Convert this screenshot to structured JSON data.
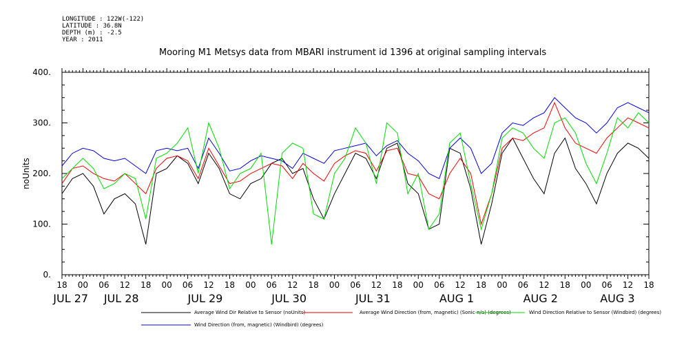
{
  "meta_lines": [
    "LONGITUDE : 122W(-122)",
    "LATITUDE : 36.8N",
    "DEPTH (m) : -2.5",
    "YEAR : 2011"
  ],
  "chart_data": {
    "type": "line",
    "title": "Mooring M1 Metsys data from MBARI instrument id 1396 at original sampling intervals",
    "ylabel": "noUnits",
    "xlabel": "",
    "ylim": [
      0,
      400
    ],
    "xlim": [
      -6,
      162
    ],
    "y_ticks": [
      0,
      100,
      200,
      300,
      400
    ],
    "y_tick_labels": [
      "0.",
      "100.",
      "200.",
      "300.",
      "400."
    ],
    "x_tick_hours": [
      -6,
      0,
      6,
      12,
      18,
      24,
      30,
      36,
      42,
      48,
      54,
      60,
      66,
      72,
      78,
      84,
      90,
      96,
      102,
      108,
      114,
      120,
      126,
      132,
      138,
      144,
      150,
      156,
      162
    ],
    "x_tick_labels": [
      "18",
      "00",
      "06",
      "12",
      "18",
      "00",
      "06",
      "12",
      "18",
      "00",
      "06",
      "12",
      "18",
      "00",
      "06",
      "12",
      "18",
      "00",
      "06",
      "12",
      "18",
      "00",
      "06",
      "12",
      "18",
      "00",
      "06",
      "12",
      "18"
    ],
    "day_labels": [
      {
        "text": "JUL 27",
        "hour": -3.5
      },
      {
        "text": "JUL 28",
        "hour": 11
      },
      {
        "text": "JUL 29",
        "hour": 35
      },
      {
        "text": "JUL 30",
        "hour": 59
      },
      {
        "text": "JUL 31",
        "hour": 83
      },
      {
        "text": "AUG  1",
        "hour": 107
      },
      {
        "text": "AUG  2",
        "hour": 131
      },
      {
        "text": "AUG  3",
        "hour": 153
      }
    ],
    "grid": false,
    "legend_position": "bottom",
    "series": [
      {
        "name": "Average Wind Dir Relative to Sensor (noUnits)",
        "color": "#000000",
        "x": [
          -6,
          -3,
          0,
          3,
          6,
          9,
          12,
          15,
          18,
          21,
          24,
          27,
          30,
          33,
          36,
          39,
          42,
          45,
          48,
          51,
          54,
          57,
          60,
          63,
          66,
          69,
          72,
          75,
          78,
          81,
          84,
          87,
          90,
          93,
          96,
          99,
          102,
          105,
          108,
          111,
          114,
          117,
          120,
          123,
          126,
          129,
          132,
          135,
          138,
          141,
          144,
          147,
          150,
          153,
          156,
          159,
          162
        ],
        "y": [
          160,
          190,
          200,
          175,
          120,
          150,
          160,
          140,
          60,
          200,
          210,
          235,
          220,
          180,
          240,
          210,
          160,
          150,
          180,
          190,
          220,
          230,
          200,
          210,
          150,
          110,
          160,
          200,
          240,
          230,
          190,
          250,
          260,
          180,
          160,
          90,
          100,
          250,
          240,
          170,
          60,
          140,
          240,
          270,
          230,
          190,
          160,
          240,
          270,
          210,
          180,
          140,
          200,
          240,
          260,
          250,
          230
        ]
      },
      {
        "name": "Average Wind Direction (from, magnetic) (Sonic-n/a) (degrees)",
        "color": "#ee0000",
        "x": [
          -6,
          -3,
          0,
          3,
          6,
          9,
          12,
          15,
          18,
          21,
          24,
          27,
          30,
          33,
          36,
          39,
          42,
          45,
          48,
          51,
          54,
          57,
          60,
          63,
          66,
          69,
          72,
          75,
          78,
          81,
          84,
          87,
          90,
          93,
          96,
          99,
          102,
          105,
          108,
          111,
          114,
          117,
          120,
          123,
          126,
          129,
          132,
          135,
          138,
          141,
          144,
          147,
          150,
          153,
          156,
          159,
          162
        ],
        "y": [
          180,
          210,
          215,
          200,
          190,
          185,
          200,
          180,
          160,
          210,
          230,
          235,
          225,
          190,
          250,
          215,
          180,
          185,
          200,
          210,
          220,
          215,
          190,
          220,
          200,
          185,
          220,
          235,
          245,
          240,
          205,
          245,
          250,
          200,
          195,
          160,
          150,
          200,
          230,
          200,
          100,
          160,
          250,
          270,
          265,
          280,
          290,
          340,
          290,
          260,
          250,
          240,
          270,
          290,
          310,
          300,
          290
        ]
      },
      {
        "name": "Wind Direction Relative to Sensor (Windbird) (degrees)",
        "color": "#00dd00",
        "x": [
          -6,
          -3,
          0,
          3,
          6,
          9,
          12,
          15,
          18,
          21,
          24,
          27,
          30,
          33,
          36,
          39,
          42,
          45,
          48,
          51,
          54,
          57,
          60,
          63,
          66,
          69,
          72,
          75,
          78,
          81,
          84,
          87,
          90,
          93,
          96,
          99,
          102,
          105,
          108,
          111,
          114,
          117,
          120,
          123,
          126,
          129,
          132,
          135,
          138,
          141,
          144,
          147,
          150,
          153,
          156,
          159,
          162
        ],
        "y": [
          190,
          210,
          230,
          210,
          170,
          180,
          200,
          190,
          110,
          230,
          240,
          260,
          290,
          200,
          300,
          250,
          170,
          200,
          210,
          240,
          60,
          240,
          260,
          250,
          120,
          110,
          200,
          230,
          290,
          260,
          180,
          300,
          280,
          160,
          200,
          90,
          120,
          260,
          280,
          180,
          90,
          160,
          270,
          290,
          280,
          250,
          230,
          300,
          310,
          280,
          220,
          180,
          240,
          310,
          290,
          320,
          300
        ]
      },
      {
        "name": "Wind Direction (from, magnetic) (Windbird) (degrees)",
        "color": "#0000dd",
        "x": [
          -6,
          -3,
          0,
          3,
          6,
          9,
          12,
          15,
          18,
          21,
          24,
          27,
          30,
          33,
          36,
          39,
          42,
          45,
          48,
          51,
          54,
          57,
          60,
          63,
          66,
          69,
          72,
          75,
          78,
          81,
          84,
          87,
          90,
          93,
          96,
          99,
          102,
          105,
          108,
          111,
          114,
          117,
          120,
          123,
          126,
          129,
          132,
          135,
          138,
          141,
          144,
          147,
          150,
          153,
          156,
          159,
          162
        ],
        "y": [
          215,
          240,
          250,
          245,
          230,
          225,
          230,
          215,
          200,
          245,
          250,
          245,
          250,
          210,
          270,
          240,
          205,
          210,
          225,
          235,
          230,
          225,
          210,
          240,
          230,
          220,
          245,
          250,
          255,
          260,
          235,
          255,
          265,
          240,
          225,
          200,
          190,
          250,
          270,
          250,
          200,
          220,
          280,
          300,
          295,
          310,
          320,
          350,
          330,
          310,
          300,
          280,
          300,
          330,
          340,
          330,
          320
        ]
      }
    ]
  }
}
